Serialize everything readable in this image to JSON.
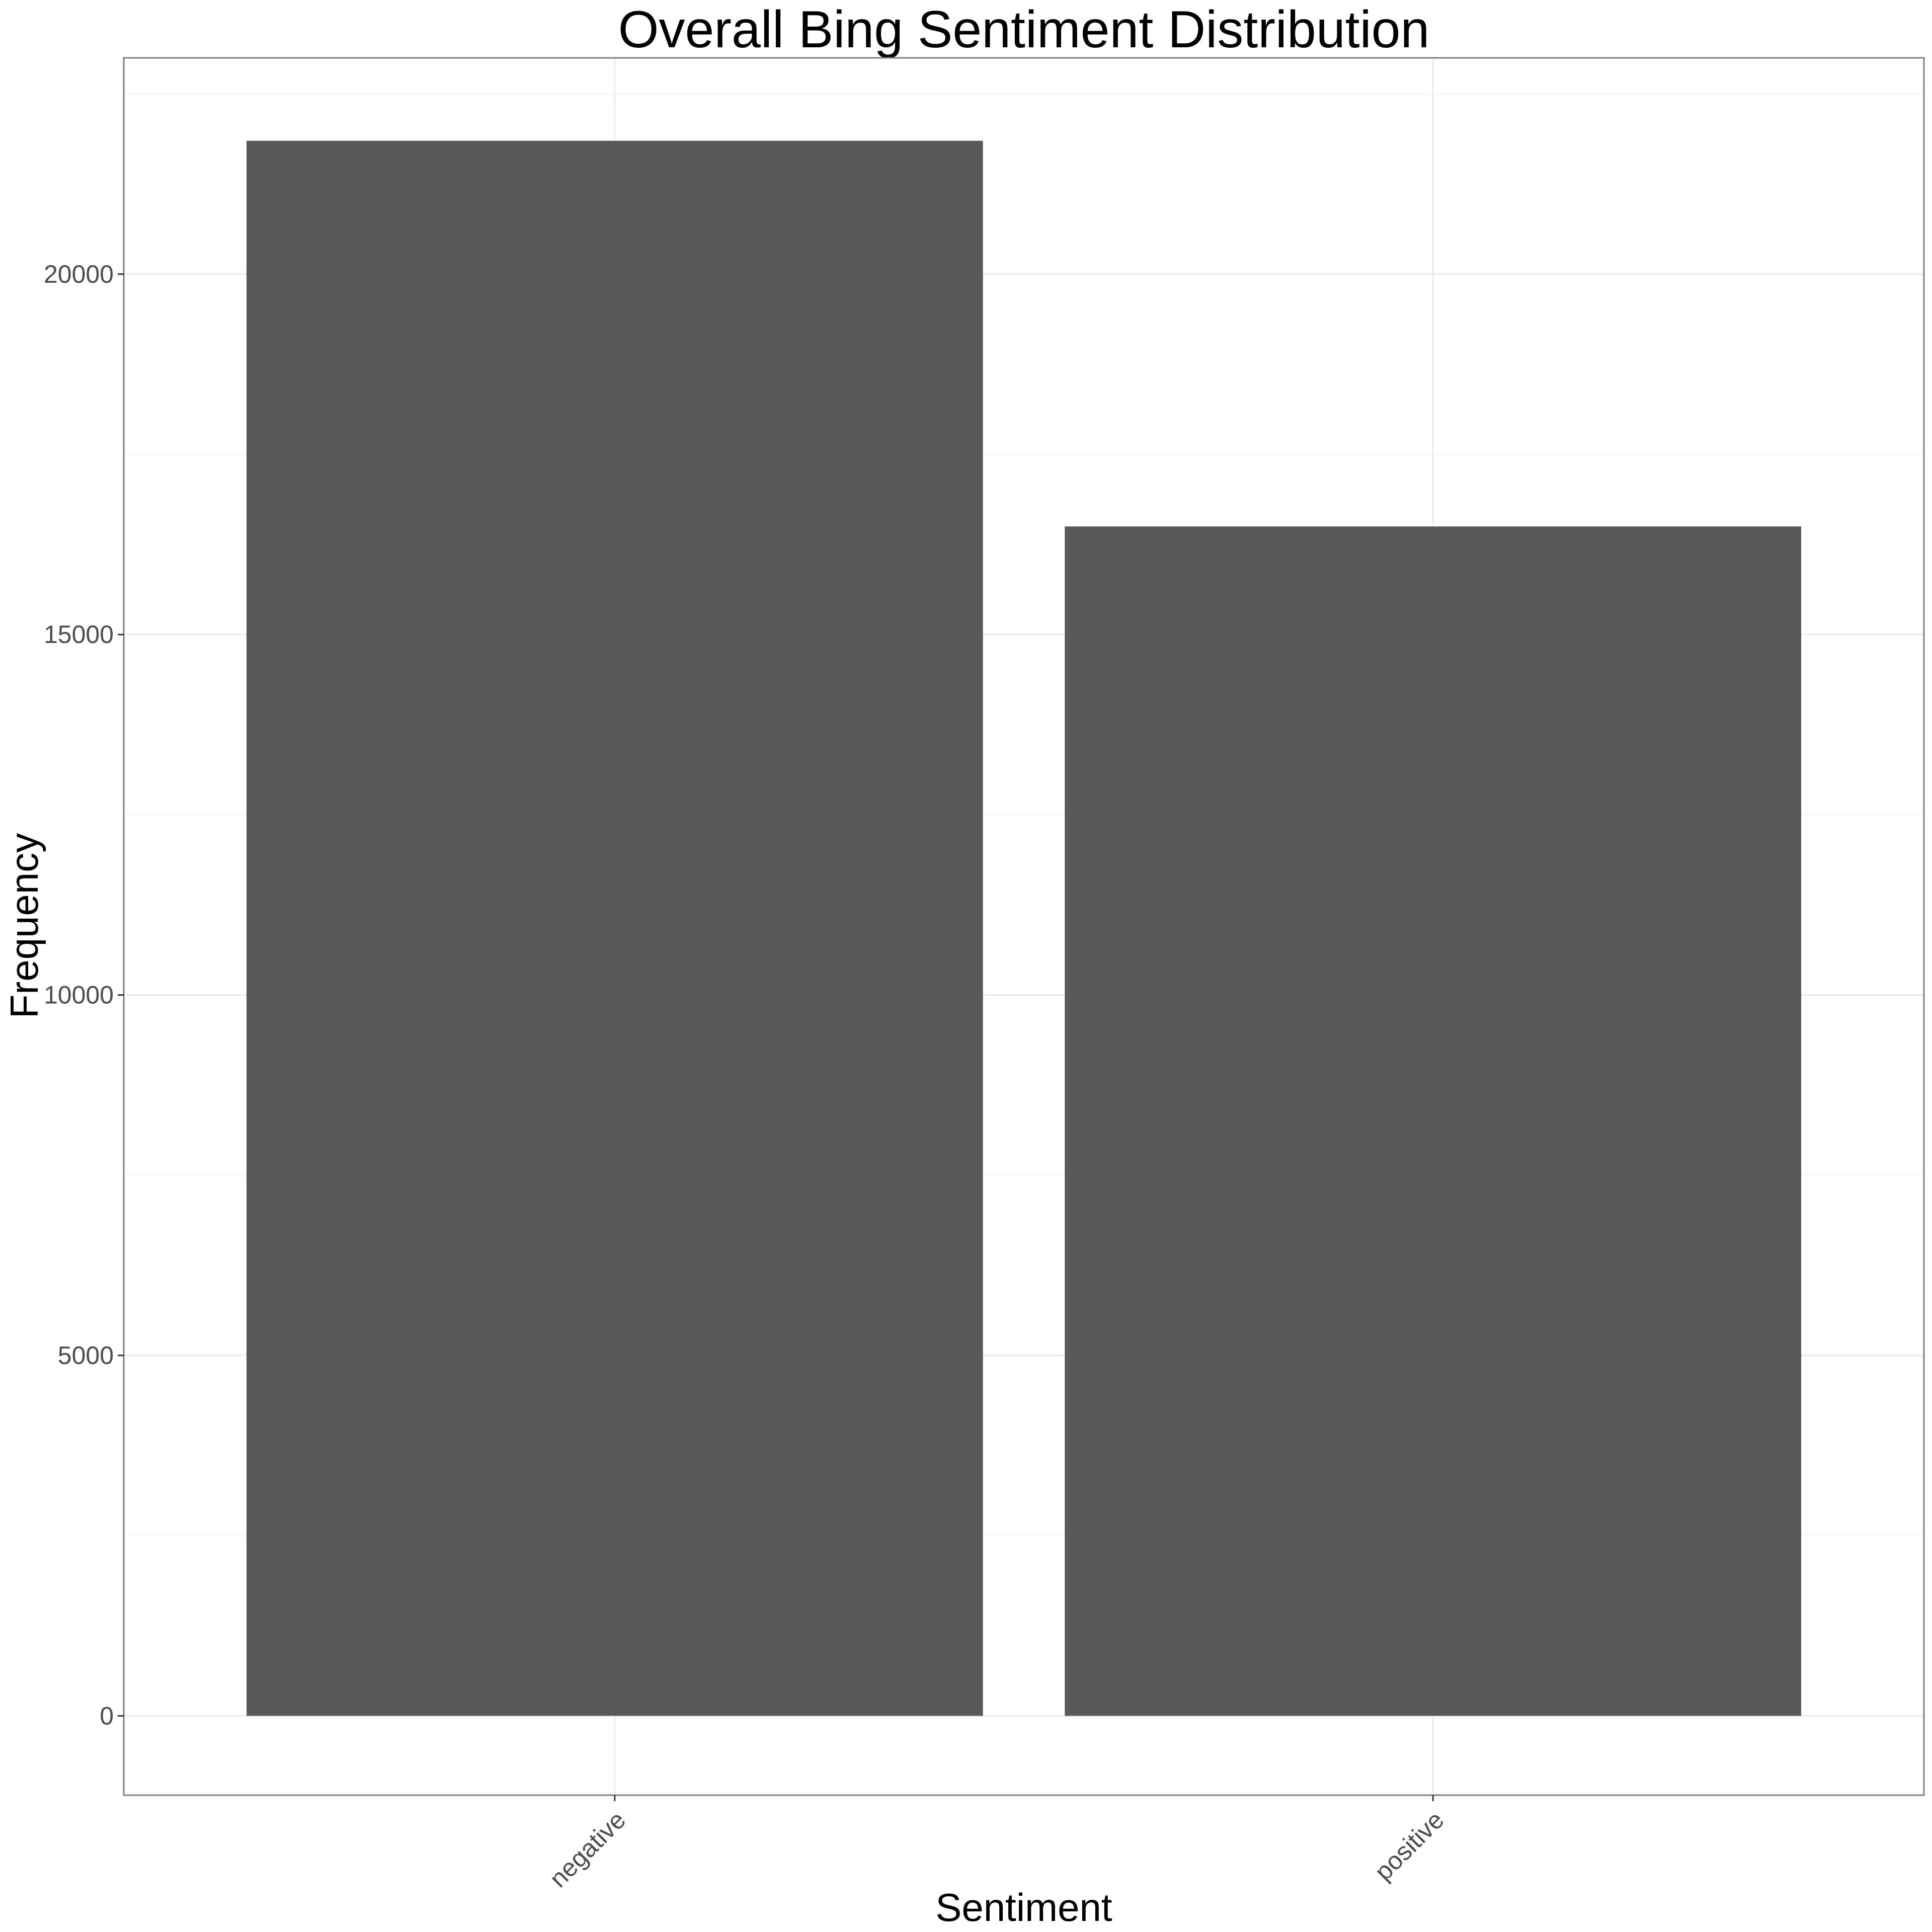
{
  "chart_data": {
    "type": "bar",
    "title": "Overall Bing Sentiment Distribution",
    "xlabel": "Sentiment",
    "ylabel": "Frequency",
    "categories": [
      "negative",
      "positive"
    ],
    "values": [
      21850,
      16500
    ],
    "ylim": [
      -1100,
      23000
    ],
    "yticks": [
      0,
      5000,
      10000,
      15000,
      20000
    ],
    "ytick_labels": [
      "0",
      "5000",
      "10000",
      "15000",
      "20000"
    ],
    "grid": true,
    "legend": "none",
    "colors": {
      "bar": "#595959",
      "grid_major": "#ebebeb",
      "grid_minor": "#f5f5f5",
      "panel_border": "#7f7f7f",
      "tick_text": "#4d4d4d"
    }
  }
}
